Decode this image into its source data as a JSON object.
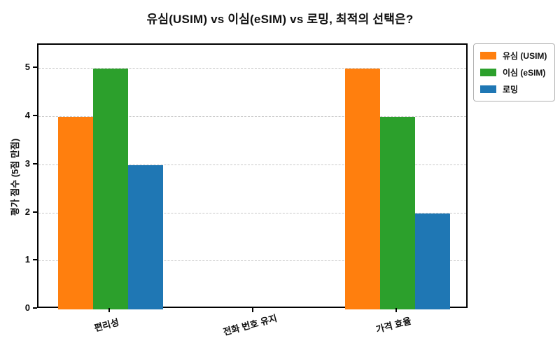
{
  "chart_data": {
    "type": "bar",
    "title": "유심(USIM) vs 이심(eSIM) vs 로밍, 최적의 선택은?",
    "categories": [
      "편리성",
      "전화 번호 유지",
      "가격 효율"
    ],
    "series": [
      {
        "name": "유심 (USIM)",
        "color": "#ff7f0e",
        "values": [
          4,
          0,
          5
        ]
      },
      {
        "name": "이심 (eSIM)",
        "color": "#2ca02c",
        "values": [
          5,
          0,
          4
        ]
      },
      {
        "name": "로밍",
        "color": "#1f77b4",
        "values": [
          3,
          0,
          2
        ]
      }
    ],
    "xlabel": "",
    "ylabel": "평가 점수 (5점 만점)",
    "ylim": [
      0,
      5.5
    ],
    "yticks": [
      0,
      1,
      2,
      3,
      4,
      5
    ],
    "grid": "horizontal-dashed",
    "gridline_color": "#c9c9c9",
    "legend_position": "upper-right-outside",
    "xtick_rotation_deg": 15,
    "axis_color": "#000000"
  }
}
